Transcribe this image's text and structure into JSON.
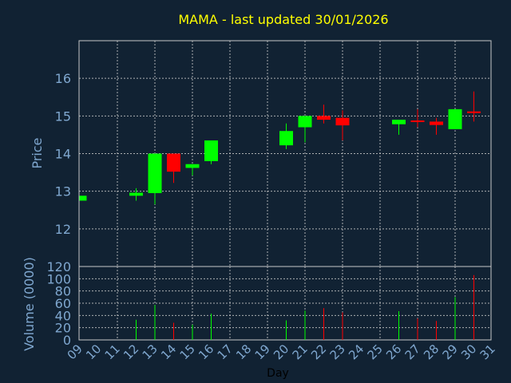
{
  "colors": {
    "background": "#112233",
    "up": "#00ff00",
    "down": "#ff0000",
    "title": "#ffff00",
    "axis_text": "#7fa7cf",
    "grid": "#c8c8c8"
  },
  "chart_data": {
    "type": "candlestick",
    "title": "MAMA - last updated 30/01/2026",
    "xlabel": "Day",
    "ylabel_price": "Price",
    "ylabel_volume": "Volume (0000)",
    "price_ylim": [
      11,
      17
    ],
    "price_yticks": [
      12,
      13,
      14,
      15,
      16
    ],
    "volume_ylim": [
      0,
      120
    ],
    "volume_yticks": [
      0,
      20,
      40,
      60,
      80,
      100,
      120
    ],
    "x_days": [
      "09",
      "10",
      "11",
      "12",
      "13",
      "14",
      "15",
      "16",
      "17",
      "18",
      "19",
      "20",
      "21",
      "22",
      "23",
      "24",
      "25",
      "26",
      "27",
      "28",
      "29",
      "30",
      "31"
    ],
    "grid": true,
    "candles": [
      {
        "day": "09",
        "open": 12.75,
        "close": 12.88,
        "high": 12.88,
        "low": 12.75,
        "volume": 0
      },
      {
        "day": "12",
        "open": 12.88,
        "close": 12.96,
        "high": 13.08,
        "low": 12.75,
        "volume": 33
      },
      {
        "day": "13",
        "open": 12.95,
        "close": 14.0,
        "high": 14.0,
        "low": 12.65,
        "volume": 57
      },
      {
        "day": "14",
        "open": 14.0,
        "close": 13.52,
        "high": 14.0,
        "low": 13.22,
        "volume": 28
      },
      {
        "day": "15",
        "open": 13.62,
        "close": 13.72,
        "high": 13.72,
        "low": 13.42,
        "volume": 25
      },
      {
        "day": "16",
        "open": 13.8,
        "close": 14.35,
        "high": 14.35,
        "low": 13.72,
        "volume": 43
      },
      {
        "day": "20",
        "open": 14.22,
        "close": 14.6,
        "high": 14.8,
        "low": 14.12,
        "volume": 32
      },
      {
        "day": "21",
        "open": 14.7,
        "close": 15.0,
        "high": 15.0,
        "low": 14.3,
        "volume": 48
      },
      {
        "day": "22",
        "open": 15.0,
        "close": 14.9,
        "high": 15.3,
        "low": 14.8,
        "volume": 52
      },
      {
        "day": "23",
        "open": 14.95,
        "close": 14.75,
        "high": 15.15,
        "low": 14.35,
        "volume": 45
      },
      {
        "day": "26",
        "open": 14.78,
        "close": 14.9,
        "high": 14.9,
        "low": 14.5,
        "volume": 47
      },
      {
        "day": "27",
        "open": 14.88,
        "close": 14.85,
        "high": 15.18,
        "low": 14.7,
        "volume": 35
      },
      {
        "day": "28",
        "open": 14.85,
        "close": 14.76,
        "high": 14.95,
        "low": 14.5,
        "volume": 31
      },
      {
        "day": "29",
        "open": 14.65,
        "close": 15.18,
        "high": 15.18,
        "low": 14.65,
        "volume": 70
      },
      {
        "day": "30",
        "open": 15.12,
        "close": 15.1,
        "high": 15.65,
        "low": 14.85,
        "volume": 106
      }
    ]
  }
}
